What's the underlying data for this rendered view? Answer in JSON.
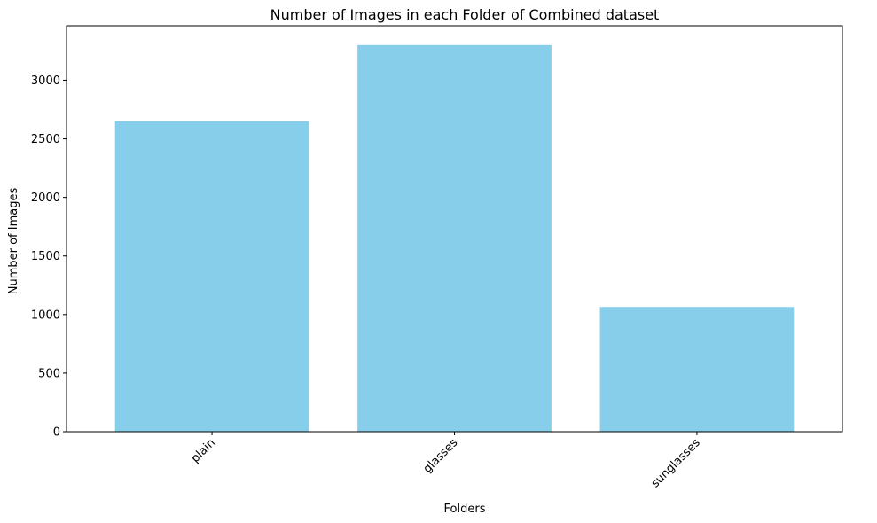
{
  "chart_data": {
    "type": "bar",
    "title": "Number of Images in each Folder of Combined dataset",
    "xlabel": "Folders",
    "ylabel": "Number of Images",
    "categories": [
      "plain",
      "glasses",
      "sunglasses"
    ],
    "values": [
      2650,
      3300,
      1065
    ],
    "ylim": [
      0,
      3465
    ],
    "yticks": [
      0,
      500,
      1000,
      1500,
      2000,
      2500,
      3000
    ],
    "bar_color": "#87ceeb",
    "grid": false,
    "x_tick_rotation_deg": 45
  }
}
